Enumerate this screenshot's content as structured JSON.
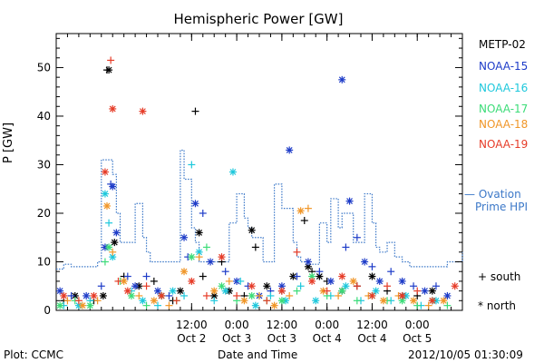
{
  "chart_data": {
    "type": "scatter",
    "title": "Hemispheric Power [GW]",
    "ylabel": "P [GW]",
    "xlabel": "Date and Time",
    "ylim": [
      0,
      57
    ],
    "xlim_hours": [
      0,
      108
    ],
    "yticks": [
      0,
      10,
      20,
      30,
      40,
      50
    ],
    "xticks": [
      {
        "t": "2012-10-02 12:00",
        "time": "12:00",
        "date": "Oct 2"
      },
      {
        "t": "2012-10-03 00:00",
        "time": "0:00",
        "date": "Oct 3"
      },
      {
        "t": "2012-10-03 12:00",
        "time": "12:00",
        "date": "Oct 3"
      },
      {
        "t": "2012-10-04 00:00",
        "time": "0:00",
        "date": "Oct 4"
      },
      {
        "t": "2012-10-04 12:00",
        "time": "12:00",
        "date": "Oct 4"
      },
      {
        "t": "2012-10-05 00:00",
        "time": "0:00",
        "date": "Oct 5"
      }
    ],
    "legend": [
      {
        "name": "METP-02",
        "color": "#000000"
      },
      {
        "name": "NOAA-15",
        "color": "#1e3cc8"
      },
      {
        "name": "NOAA-16",
        "color": "#1ec8dc"
      },
      {
        "name": "NOAA-17",
        "color": "#3cdc78"
      },
      {
        "name": "NOAA-18",
        "color": "#f09628"
      },
      {
        "name": "NOAA-19",
        "color": "#e63c28"
      }
    ],
    "ovation": {
      "label1": "— Ovation",
      "label2": "Prime HPI",
      "color": "#3c78c8",
      "steps": [
        [
          0,
          8.5
        ],
        [
          2,
          9.5
        ],
        [
          4,
          9
        ],
        [
          11,
          10
        ],
        [
          12,
          31
        ],
        [
          15,
          28
        ],
        [
          16,
          20
        ],
        [
          17,
          14
        ],
        [
          21,
          22
        ],
        [
          23,
          15
        ],
        [
          24,
          12
        ],
        [
          25,
          10
        ],
        [
          33,
          33
        ],
        [
          34,
          27
        ],
        [
          36,
          17
        ],
        [
          37,
          14
        ],
        [
          38,
          10
        ],
        [
          46,
          18
        ],
        [
          48,
          24
        ],
        [
          50,
          19
        ],
        [
          51,
          17
        ],
        [
          52,
          15
        ],
        [
          55,
          10
        ],
        [
          57,
          10
        ],
        [
          58,
          26
        ],
        [
          60,
          21
        ],
        [
          63,
          14
        ],
        [
          64,
          11
        ],
        [
          65,
          10
        ],
        [
          67,
          9.5
        ],
        [
          70,
          18
        ],
        [
          72,
          14
        ],
        [
          73,
          23
        ],
        [
          75,
          17
        ],
        [
          76,
          20
        ],
        [
          79,
          14
        ],
        [
          82,
          24
        ],
        [
          84,
          18
        ],
        [
          85,
          13
        ],
        [
          86,
          12
        ],
        [
          88,
          14
        ],
        [
          90,
          11
        ],
        [
          92,
          10
        ],
        [
          94,
          9
        ],
        [
          104,
          10
        ],
        [
          108,
          12
        ]
      ]
    },
    "marker_legend": [
      {
        "symbol": "+",
        "label": "south"
      },
      {
        "symbol": "*",
        "label": "north"
      }
    ],
    "series": [
      {
        "name": "METP-02",
        "color": "#000000",
        "points": [
          [
            2,
            2,
            "+"
          ],
          [
            5,
            3,
            "*"
          ],
          [
            10,
            2,
            "+"
          ],
          [
            12.5,
            3,
            "*"
          ],
          [
            13.5,
            49.5,
            "+"
          ],
          [
            14,
            49.5,
            "*"
          ],
          [
            15.5,
            14,
            "*"
          ],
          [
            18,
            7,
            "+"
          ],
          [
            22,
            5,
            "*"
          ],
          [
            26,
            6,
            "+"
          ],
          [
            28,
            3,
            "*"
          ],
          [
            31,
            2,
            "+"
          ],
          [
            33,
            4,
            "*"
          ],
          [
            37,
            41,
            "+"
          ],
          [
            38,
            16,
            "*"
          ],
          [
            39,
            7,
            "+"
          ],
          [
            42,
            3,
            "*"
          ],
          [
            44,
            10,
            "+"
          ],
          [
            46,
            4,
            "*"
          ],
          [
            50,
            3,
            "+"
          ],
          [
            52,
            16.5,
            "*"
          ],
          [
            53,
            13,
            "+"
          ],
          [
            56,
            5,
            "*"
          ],
          [
            60,
            4,
            "+"
          ],
          [
            63,
            7,
            "*"
          ],
          [
            66,
            18.5,
            "+"
          ],
          [
            67,
            9,
            "*"
          ],
          [
            68,
            8,
            "+"
          ],
          [
            70,
            7,
            "*"
          ],
          [
            72,
            6,
            "+"
          ],
          [
            76,
            4,
            "*"
          ],
          [
            80,
            5,
            "+"
          ],
          [
            84,
            7,
            "*"
          ],
          [
            88,
            4,
            "+"
          ],
          [
            92,
            3,
            "*"
          ],
          [
            96,
            3,
            "+"
          ],
          [
            100,
            4,
            "*"
          ]
        ]
      },
      {
        "name": "NOAA-15",
        "color": "#1e3cc8",
        "points": [
          [
            1,
            4,
            "*"
          ],
          [
            4,
            3,
            "+"
          ],
          [
            8,
            3,
            "*"
          ],
          [
            12,
            5,
            "+"
          ],
          [
            13,
            13,
            "*"
          ],
          [
            14.5,
            26,
            "+"
          ],
          [
            15,
            25.5,
            "*"
          ],
          [
            16,
            16,
            "*"
          ],
          [
            19,
            7,
            "+"
          ],
          [
            21,
            5,
            "*"
          ],
          [
            24,
            7,
            "+"
          ],
          [
            27,
            4,
            "*"
          ],
          [
            30,
            3,
            "+"
          ],
          [
            34,
            15,
            "*"
          ],
          [
            35,
            11,
            "+"
          ],
          [
            37,
            22,
            "*"
          ],
          [
            39,
            20,
            "+"
          ],
          [
            41,
            10,
            "*"
          ],
          [
            45,
            8,
            "+"
          ],
          [
            48,
            6,
            "*"
          ],
          [
            51,
            5,
            "+"
          ],
          [
            54,
            3,
            "*"
          ],
          [
            57,
            4,
            "+"
          ],
          [
            60,
            5,
            "*"
          ],
          [
            62,
            33,
            "*"
          ],
          [
            64,
            7,
            "+"
          ],
          [
            67,
            10,
            "*"
          ],
          [
            70,
            8,
            "+"
          ],
          [
            73,
            6,
            "*"
          ],
          [
            76,
            47.5,
            "*"
          ],
          [
            77,
            13,
            "+"
          ],
          [
            78,
            22.5,
            "*"
          ],
          [
            80,
            15,
            "+"
          ],
          [
            82,
            10,
            "*"
          ],
          [
            84,
            9,
            "+"
          ],
          [
            86,
            6,
            "*"
          ],
          [
            89,
            8,
            "+"
          ],
          [
            92,
            6,
            "*"
          ],
          [
            95,
            5,
            "+"
          ],
          [
            98,
            4,
            "*"
          ],
          [
            101,
            5,
            "+"
          ],
          [
            104,
            3,
            "*"
          ]
        ]
      },
      {
        "name": "NOAA-16",
        "color": "#1ec8dc",
        "points": [
          [
            2,
            1,
            "+"
          ],
          [
            6,
            1,
            "*"
          ],
          [
            9,
            2,
            "+"
          ],
          [
            13,
            24,
            "*"
          ],
          [
            14,
            18,
            "+"
          ],
          [
            15,
            11,
            "*"
          ],
          [
            20,
            4,
            "+"
          ],
          [
            23,
            2,
            "*"
          ],
          [
            27,
            1,
            "+"
          ],
          [
            31,
            4,
            "*"
          ],
          [
            34,
            3,
            "+"
          ],
          [
            36,
            30,
            "+"
          ],
          [
            38,
            12,
            "*"
          ],
          [
            42,
            2,
            "+"
          ],
          [
            45,
            4,
            "*"
          ],
          [
            47,
            28.5,
            "*"
          ],
          [
            49,
            6,
            "+"
          ],
          [
            53,
            1,
            "*"
          ],
          [
            57,
            3,
            "+"
          ],
          [
            61,
            2,
            "*"
          ],
          [
            65,
            5,
            "+"
          ],
          [
            69,
            2,
            "*"
          ],
          [
            73,
            3,
            "+"
          ],
          [
            77,
            5,
            "*"
          ],
          [
            81,
            2,
            "+"
          ],
          [
            85,
            4,
            "*"
          ],
          [
            89,
            2,
            "+"
          ],
          [
            93,
            3,
            "*"
          ],
          [
            97,
            1,
            "+"
          ],
          [
            101,
            2,
            "*"
          ]
        ]
      },
      {
        "name": "NOAA-17",
        "color": "#3cdc78",
        "points": [
          [
            1,
            1,
            "*"
          ],
          [
            5,
            2,
            "+"
          ],
          [
            9,
            1,
            "*"
          ],
          [
            13,
            10,
            "+"
          ],
          [
            14,
            13,
            "*"
          ],
          [
            17,
            6,
            "+"
          ],
          [
            20,
            3,
            "*"
          ],
          [
            24,
            1,
            "+"
          ],
          [
            28,
            3,
            "*"
          ],
          [
            32,
            2,
            "+"
          ],
          [
            36,
            11,
            "*"
          ],
          [
            40,
            13,
            "+"
          ],
          [
            44,
            5,
            "*"
          ],
          [
            48,
            2,
            "+"
          ],
          [
            52,
            3,
            "*"
          ],
          [
            56,
            2,
            "+"
          ],
          [
            60,
            2,
            "*"
          ],
          [
            64,
            4,
            "+"
          ],
          [
            68,
            7,
            "*"
          ],
          [
            72,
            3,
            "+"
          ],
          [
            76,
            4,
            "*"
          ],
          [
            80,
            2,
            "+"
          ],
          [
            84,
            3,
            "*"
          ],
          [
            88,
            2,
            "+"
          ],
          [
            92,
            2,
            "*"
          ],
          [
            96,
            1,
            "+"
          ],
          [
            100,
            2,
            "*"
          ],
          [
            104,
            1,
            "+"
          ]
        ]
      },
      {
        "name": "NOAA-18",
        "color": "#f09628",
        "points": [
          [
            3,
            2,
            "+"
          ],
          [
            7,
            1,
            "*"
          ],
          [
            11,
            2,
            "+"
          ],
          [
            13.5,
            21.5,
            "*"
          ],
          [
            15,
            12,
            "+"
          ],
          [
            18,
            6,
            "*"
          ],
          [
            22,
            3,
            "+"
          ],
          [
            26,
            2,
            "*"
          ],
          [
            30,
            1,
            "+"
          ],
          [
            34,
            8,
            "*"
          ],
          [
            38,
            11,
            "+"
          ],
          [
            42,
            4,
            "*"
          ],
          [
            46,
            6,
            "+"
          ],
          [
            50,
            2,
            "*"
          ],
          [
            54,
            3,
            "+"
          ],
          [
            58,
            1,
            "*"
          ],
          [
            62,
            3,
            "+"
          ],
          [
            65,
            20.5,
            "*"
          ],
          [
            67,
            21,
            "+"
          ],
          [
            71,
            4,
            "*"
          ],
          [
            75,
            3,
            "+"
          ],
          [
            79,
            6,
            "*"
          ],
          [
            83,
            3,
            "+"
          ],
          [
            87,
            2,
            "*"
          ],
          [
            91,
            3,
            "+"
          ],
          [
            95,
            2,
            "*"
          ],
          [
            99,
            1,
            "+"
          ],
          [
            103,
            2,
            "*"
          ]
        ]
      },
      {
        "name": "NOAA-19",
        "color": "#e63c28",
        "points": [
          [
            2,
            3,
            "*"
          ],
          [
            6,
            2,
            "+"
          ],
          [
            10,
            3,
            "*"
          ],
          [
            13,
            28.5,
            "*"
          ],
          [
            14.5,
            51.5,
            "+"
          ],
          [
            15,
            41.5,
            "*"
          ],
          [
            16.5,
            6,
            "+"
          ],
          [
            19,
            4,
            "*"
          ],
          [
            23,
            41,
            "*"
          ],
          [
            24,
            5,
            "+"
          ],
          [
            28,
            3,
            "*"
          ],
          [
            32,
            2,
            "+"
          ],
          [
            36,
            6,
            "*"
          ],
          [
            40,
            3,
            "+"
          ],
          [
            44,
            11,
            "*"
          ],
          [
            48,
            3,
            "+"
          ],
          [
            52,
            5,
            "*"
          ],
          [
            56,
            2,
            "+"
          ],
          [
            60,
            4,
            "*"
          ],
          [
            64,
            12,
            "+"
          ],
          [
            68,
            6,
            "*"
          ],
          [
            72,
            4,
            "+"
          ],
          [
            76,
            7,
            "*"
          ],
          [
            80,
            5,
            "+"
          ],
          [
            84,
            3,
            "*"
          ],
          [
            88,
            5,
            "+"
          ],
          [
            92,
            3,
            "*"
          ],
          [
            96,
            4,
            "+"
          ],
          [
            100,
            2,
            "*"
          ],
          [
            106,
            5,
            "*"
          ]
        ]
      }
    ]
  },
  "footer": {
    "left": "Plot: CCMC",
    "center": "Date and Time",
    "right": "2012/10/05 01:30:09"
  }
}
